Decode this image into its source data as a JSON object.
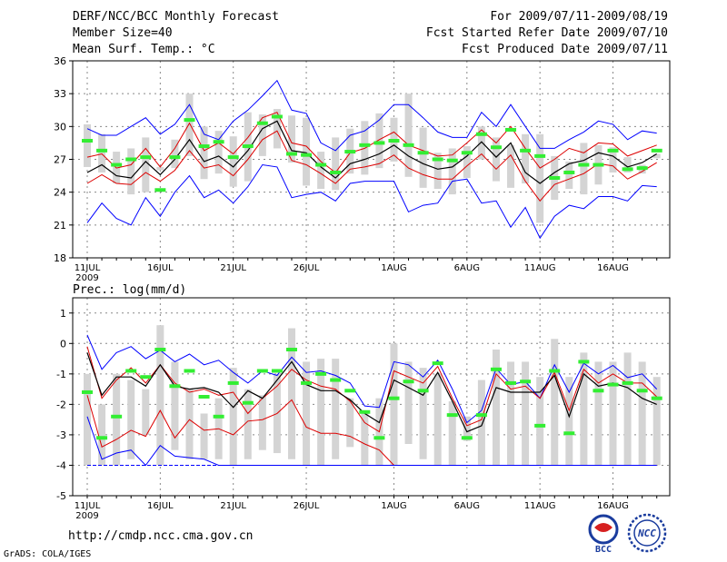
{
  "header": {
    "title": "DERF/NCC/BCC Monthly Forecast",
    "member_size": "Member Size=40",
    "variable": "Mean Surf. Temp.: °C",
    "period": "For 2009/07/11-2009/08/19",
    "started": "Fcst Started Refer Date 2009/07/10",
    "produced": "Fcst Produced Date 2009/07/11"
  },
  "footer": {
    "url": "http://cmdp.ncc.cma.gov.cn",
    "credit": "GrADS: COLA/IGES",
    "logo_bcc_text": "BCC",
    "logo_ncc_text": "NCC"
  },
  "colors": {
    "max": "#0000ff",
    "spread": "#dd0000",
    "mean": "#000000",
    "obs": "#33ee33",
    "box": "#d4d4d4"
  },
  "chart_data": [
    {
      "type": "line",
      "id": "temp",
      "title": "Mean Surf. Temp.: °C",
      "ylim": [
        18,
        36
      ],
      "yticks": [
        18,
        21,
        24,
        27,
        30,
        33,
        36
      ],
      "xlabels": [
        "11JUL",
        "16JUL",
        "21JUL",
        "26JUL",
        "1AUG",
        "6AUG",
        "11AUG",
        "16AUG"
      ],
      "xlabel_days": [
        0,
        5,
        10,
        15,
        21,
        26,
        31,
        36
      ],
      "year_label": "2009",
      "days": 40,
      "series": [
        {
          "name": "max",
          "values": [
            21.2,
            23.0,
            21.6,
            21.0,
            23.5,
            21.8,
            24.0,
            25.5,
            23.5,
            24.2,
            23.0,
            24.5,
            26.5,
            26.3,
            23.5,
            23.8,
            24.0,
            23.2,
            24.8,
            25.0,
            25.0,
            25.0,
            22.2,
            22.8,
            23.0,
            25.0,
            25.2,
            23.0,
            23.2,
            20.8,
            22.6,
            19.8,
            21.8,
            22.8,
            22.5,
            23.6,
            23.6,
            23.2,
            24.6,
            24.5
          ]
        },
        {
          "name": "min",
          "values": [
            29.8,
            29.2,
            29.2,
            30.0,
            30.8,
            29.3,
            30.2,
            32.0,
            29.3,
            28.8,
            30.5,
            31.5,
            32.8,
            34.2,
            31.5,
            31.2,
            28.5,
            27.8,
            29.2,
            29.6,
            30.6,
            32.0,
            32.0,
            30.8,
            29.5,
            29.0,
            29.0,
            31.3,
            30.0,
            32.0,
            30.0,
            28.0,
            28.0,
            28.8,
            29.5,
            30.5,
            30.2,
            28.8,
            29.6,
            29.4
          ]
        },
        {
          "name": "upper",
          "values": [
            27.2,
            27.5,
            26.2,
            26.5,
            28.0,
            26.3,
            28.0,
            30.3,
            27.8,
            28.5,
            27.5,
            29.0,
            30.8,
            31.3,
            28.5,
            28.2,
            26.8,
            25.8,
            27.6,
            28.0,
            28.8,
            29.5,
            28.3,
            27.8,
            27.3,
            27.4,
            28.5,
            29.7,
            28.5,
            30.0,
            28.0,
            26.2,
            27.0,
            28.0,
            27.6,
            28.5,
            28.4,
            27.3,
            27.8,
            28.3
          ]
        },
        {
          "name": "mean",
          "values": [
            25.8,
            26.5,
            25.5,
            25.3,
            26.8,
            25.6,
            27.0,
            28.8,
            26.8,
            27.3,
            26.3,
            27.8,
            29.8,
            30.5,
            27.8,
            27.6,
            26.3,
            25.3,
            26.6,
            27.0,
            27.5,
            28.3,
            27.3,
            26.6,
            26.1,
            26.3,
            27.3,
            28.6,
            27.2,
            28.5,
            25.8,
            24.8,
            25.8,
            26.6,
            26.9,
            27.6,
            27.3,
            26.3,
            26.7,
            27.5
          ]
        },
        {
          "name": "lower",
          "values": [
            24.8,
            25.6,
            24.8,
            24.7,
            25.8,
            25.0,
            26.0,
            27.8,
            26.2,
            26.5,
            25.5,
            27.0,
            28.8,
            29.6,
            26.9,
            26.5,
            25.7,
            24.8,
            26.1,
            26.3,
            26.6,
            27.4,
            26.2,
            25.6,
            25.2,
            25.2,
            26.4,
            27.5,
            26.1,
            27.4,
            25.0,
            23.2,
            24.7,
            25.2,
            25.7,
            26.6,
            26.4,
            25.2,
            25.9,
            26.7
          ]
        },
        {
          "name": "obs",
          "values": [
            28.7,
            27.8,
            26.5,
            27.0,
            27.2,
            24.2,
            27.2,
            30.6,
            28.2,
            28.6,
            27.2,
            28.2,
            30.3,
            30.9,
            27.5,
            27.4,
            26.5,
            25.8,
            27.7,
            28.3,
            28.5,
            28.7,
            28.3,
            27.6,
            27.0,
            26.9,
            27.6,
            29.3,
            28.1,
            29.7,
            27.8,
            27.3,
            25.3,
            25.8,
            26.5,
            26.5,
            27.8,
            26.1,
            26.2,
            27.8
          ]
        },
        {
          "name": "box_low",
          "values": [
            26.3,
            25.8,
            24.8,
            23.8,
            24.0,
            26.0,
            26.2,
            27.3,
            25.2,
            25.7,
            24.5,
            25.0,
            27.3,
            28.0,
            26.7,
            24.6,
            24.3,
            24.2,
            25.7,
            25.6,
            26.2,
            26.8,
            25.4,
            24.4,
            24.3,
            23.8,
            25.3,
            27.0,
            25.0,
            24.4,
            24.8,
            21.2,
            23.3,
            24.3,
            23.8,
            24.7,
            25.8,
            25.8,
            25.7,
            27.1
          ]
        },
        {
          "name": "box_high",
          "values": [
            30.2,
            29.3,
            27.7,
            28.0,
            29.0,
            26.3,
            28.8,
            33.0,
            30.0,
            29.6,
            29.1,
            31.3,
            31.1,
            31.6,
            31.0,
            30.8,
            27.7,
            29.0,
            29.8,
            30.5,
            31.2,
            30.8,
            33.0,
            29.9,
            27.6,
            28.0,
            28.2,
            30.0,
            29.0,
            28.3,
            29.3,
            29.3,
            27.3,
            26.8,
            28.5,
            28.3,
            28.1,
            27.2,
            26.5,
            27.5
          ]
        }
      ]
    },
    {
      "type": "line",
      "id": "precip",
      "title": "Prec.: log(mm/d)",
      "ylim": [
        -5,
        1.5
      ],
      "yticks": [
        -5,
        -4,
        -3,
        -2,
        -1,
        0,
        1
      ],
      "xlabels": [
        "11JUL",
        "16JUL",
        "21JUL",
        "26JUL",
        "1AUG",
        "6AUG",
        "11AUG",
        "16AUG"
      ],
      "xlabel_days": [
        0,
        5,
        10,
        15,
        21,
        26,
        31,
        36
      ],
      "year_label": "2009",
      "days": 40,
      "series": [
        {
          "name": "max",
          "values": [
            0.28,
            -0.85,
            -0.3,
            -0.1,
            -0.5,
            -0.22,
            -0.6,
            -0.35,
            -0.7,
            -0.55,
            -0.95,
            -1.3,
            -0.9,
            -1.05,
            -0.45,
            -0.95,
            -0.9,
            -1.05,
            -1.3,
            -2.05,
            -2.1,
            -0.6,
            -0.7,
            -1.1,
            -0.55,
            -1.5,
            -2.6,
            -2.2,
            -0.82,
            -1.35,
            -1.25,
            -1.8,
            -0.7,
            -1.6,
            -0.65,
            -1.0,
            -0.72,
            -1.12,
            -1.0,
            -1.5
          ]
        },
        {
          "name": "upper",
          "values": [
            -0.1,
            -1.8,
            -1.2,
            -0.8,
            -1.3,
            -0.7,
            -1.3,
            -1.6,
            -1.5,
            -1.7,
            -1.6,
            -2.3,
            -1.8,
            -1.4,
            -0.85,
            -1.2,
            -1.4,
            -1.5,
            -1.9,
            -2.6,
            -2.9,
            -0.9,
            -1.1,
            -1.3,
            -0.75,
            -1.8,
            -2.7,
            -2.5,
            -1.0,
            -1.5,
            -1.4,
            -1.8,
            -0.95,
            -2.2,
            -0.85,
            -1.3,
            -1.0,
            -1.3,
            -1.3,
            -1.75
          ]
        },
        {
          "name": "mean",
          "values": [
            -0.3,
            -1.7,
            -1.1,
            -1.1,
            -1.4,
            -0.7,
            -1.4,
            -1.5,
            -1.45,
            -1.6,
            -2.1,
            -1.55,
            -1.8,
            -1.2,
            -0.6,
            -1.35,
            -1.55,
            -1.55,
            -1.85,
            -2.3,
            -2.6,
            -1.2,
            -1.45,
            -1.7,
            -0.95,
            -1.9,
            -2.9,
            -2.7,
            -1.45,
            -1.6,
            -1.6,
            -1.6,
            -1.05,
            -2.4,
            -1.0,
            -1.4,
            -1.3,
            -1.45,
            -1.8,
            -2.0
          ]
        },
        {
          "name": "lower",
          "values": [
            -1.7,
            -3.4,
            -3.15,
            -2.85,
            -3.05,
            -2.2,
            -3.1,
            -2.5,
            -2.85,
            -2.8,
            -3.0,
            -2.55,
            -2.5,
            -2.3,
            -1.85,
            -2.75,
            -2.95,
            -2.95,
            -3.05,
            -3.3,
            -3.5,
            -4.0,
            -4.0,
            -4.0,
            -4.0,
            -4.0,
            -4.0,
            -4.0,
            -4.0,
            -4.0,
            -4.0,
            -4.0,
            -4.0,
            -4.0,
            -4.0,
            -4.0,
            -4.0,
            -4.0,
            -4.0,
            -4.0
          ]
        },
        {
          "name": "min",
          "values": [
            -2.4,
            -3.8,
            -3.6,
            -3.5,
            -4.0,
            -3.35,
            -3.7,
            -3.75,
            -3.8,
            -4.0,
            -4.0,
            -4.0,
            -4.0,
            -4.0,
            -4.0,
            -4.0,
            -4.0,
            -4.0,
            -4.0,
            -4.0,
            -4.0,
            -4.0,
            -4.0,
            -4.0,
            -4.0,
            -4.0,
            -4.0,
            -4.0,
            -4.0,
            -4.0,
            -4.0,
            -4.0,
            -4.0,
            -4.0,
            -4.0,
            -4.0,
            -4.0,
            -4.0,
            -4.0,
            -4.0
          ]
        },
        {
          "name": "floor",
          "values": [
            -4.0,
            -4.0,
            -4.0,
            -4.0,
            -4.0,
            -4.0,
            -4.0,
            -4.0,
            -4.0,
            -4.0,
            -4.0,
            -4.0,
            -4.0,
            -4.0,
            -4.0,
            -4.0,
            -4.0,
            -4.0,
            -4.0,
            -4.0,
            -4.0,
            -4.0,
            -4.0,
            -4.0,
            -4.0,
            -4.0,
            -4.0,
            -4.0,
            -4.0,
            -4.0,
            -4.0,
            -4.0,
            -4.0,
            -4.0,
            -4.0,
            -4.0,
            -4.0,
            -4.0,
            -4.0,
            -4.0
          ]
        },
        {
          "name": "obs",
          "values": [
            -1.6,
            -3.1,
            -2.4,
            -0.9,
            -1.1,
            -0.2,
            -1.4,
            -0.9,
            -1.75,
            -2.4,
            -1.3,
            -1.95,
            -0.9,
            -0.9,
            -0.2,
            -1.3,
            -1.0,
            -1.2,
            -1.55,
            -2.25,
            -3.1,
            -1.8,
            -1.25,
            -1.55,
            -0.65,
            -2.35,
            -3.1,
            -2.35,
            -0.85,
            -1.3,
            -1.25,
            -2.7,
            -0.9,
            -2.95,
            -0.6,
            -1.55,
            -1.35,
            -1.3,
            -1.55,
            -1.8
          ]
        },
        {
          "name": "box_low",
          "values": [
            -4.0,
            -4.0,
            -4.0,
            -3.8,
            -3.0,
            -4.0,
            -3.5,
            -3.8,
            -3.8,
            -3.8,
            -4.0,
            -3.8,
            -3.5,
            -3.6,
            -3.8,
            -4.0,
            -4.0,
            -3.8,
            -3.4,
            -4.0,
            -4.0,
            -4.0,
            -3.3,
            -3.8,
            -4.0,
            -4.0,
            -3.2,
            -4.0,
            -4.0,
            -4.0,
            -4.0,
            -4.0,
            -4.0,
            -4.0,
            -4.0,
            -4.0,
            -4.0,
            -4.0,
            -4.0,
            -4.0
          ]
        },
        {
          "name": "box_high",
          "values": [
            -1.0,
            -2.0,
            -1.0,
            -1.2,
            -1.5,
            0.6,
            -0.6,
            -1.5,
            -2.3,
            -1.8,
            -0.8,
            -1.5,
            -1.7,
            -1.0,
            0.5,
            -0.6,
            -0.5,
            -0.5,
            -1.8,
            -2.2,
            -1.8,
            0.0,
            -0.6,
            -0.8,
            -1.0,
            -1.9,
            -2.4,
            -1.2,
            -0.2,
            -0.6,
            -0.6,
            -1.1,
            0.15,
            -1.1,
            -0.3,
            -0.6,
            -0.6,
            -0.3,
            -0.6,
            -1.1
          ]
        }
      ]
    }
  ]
}
